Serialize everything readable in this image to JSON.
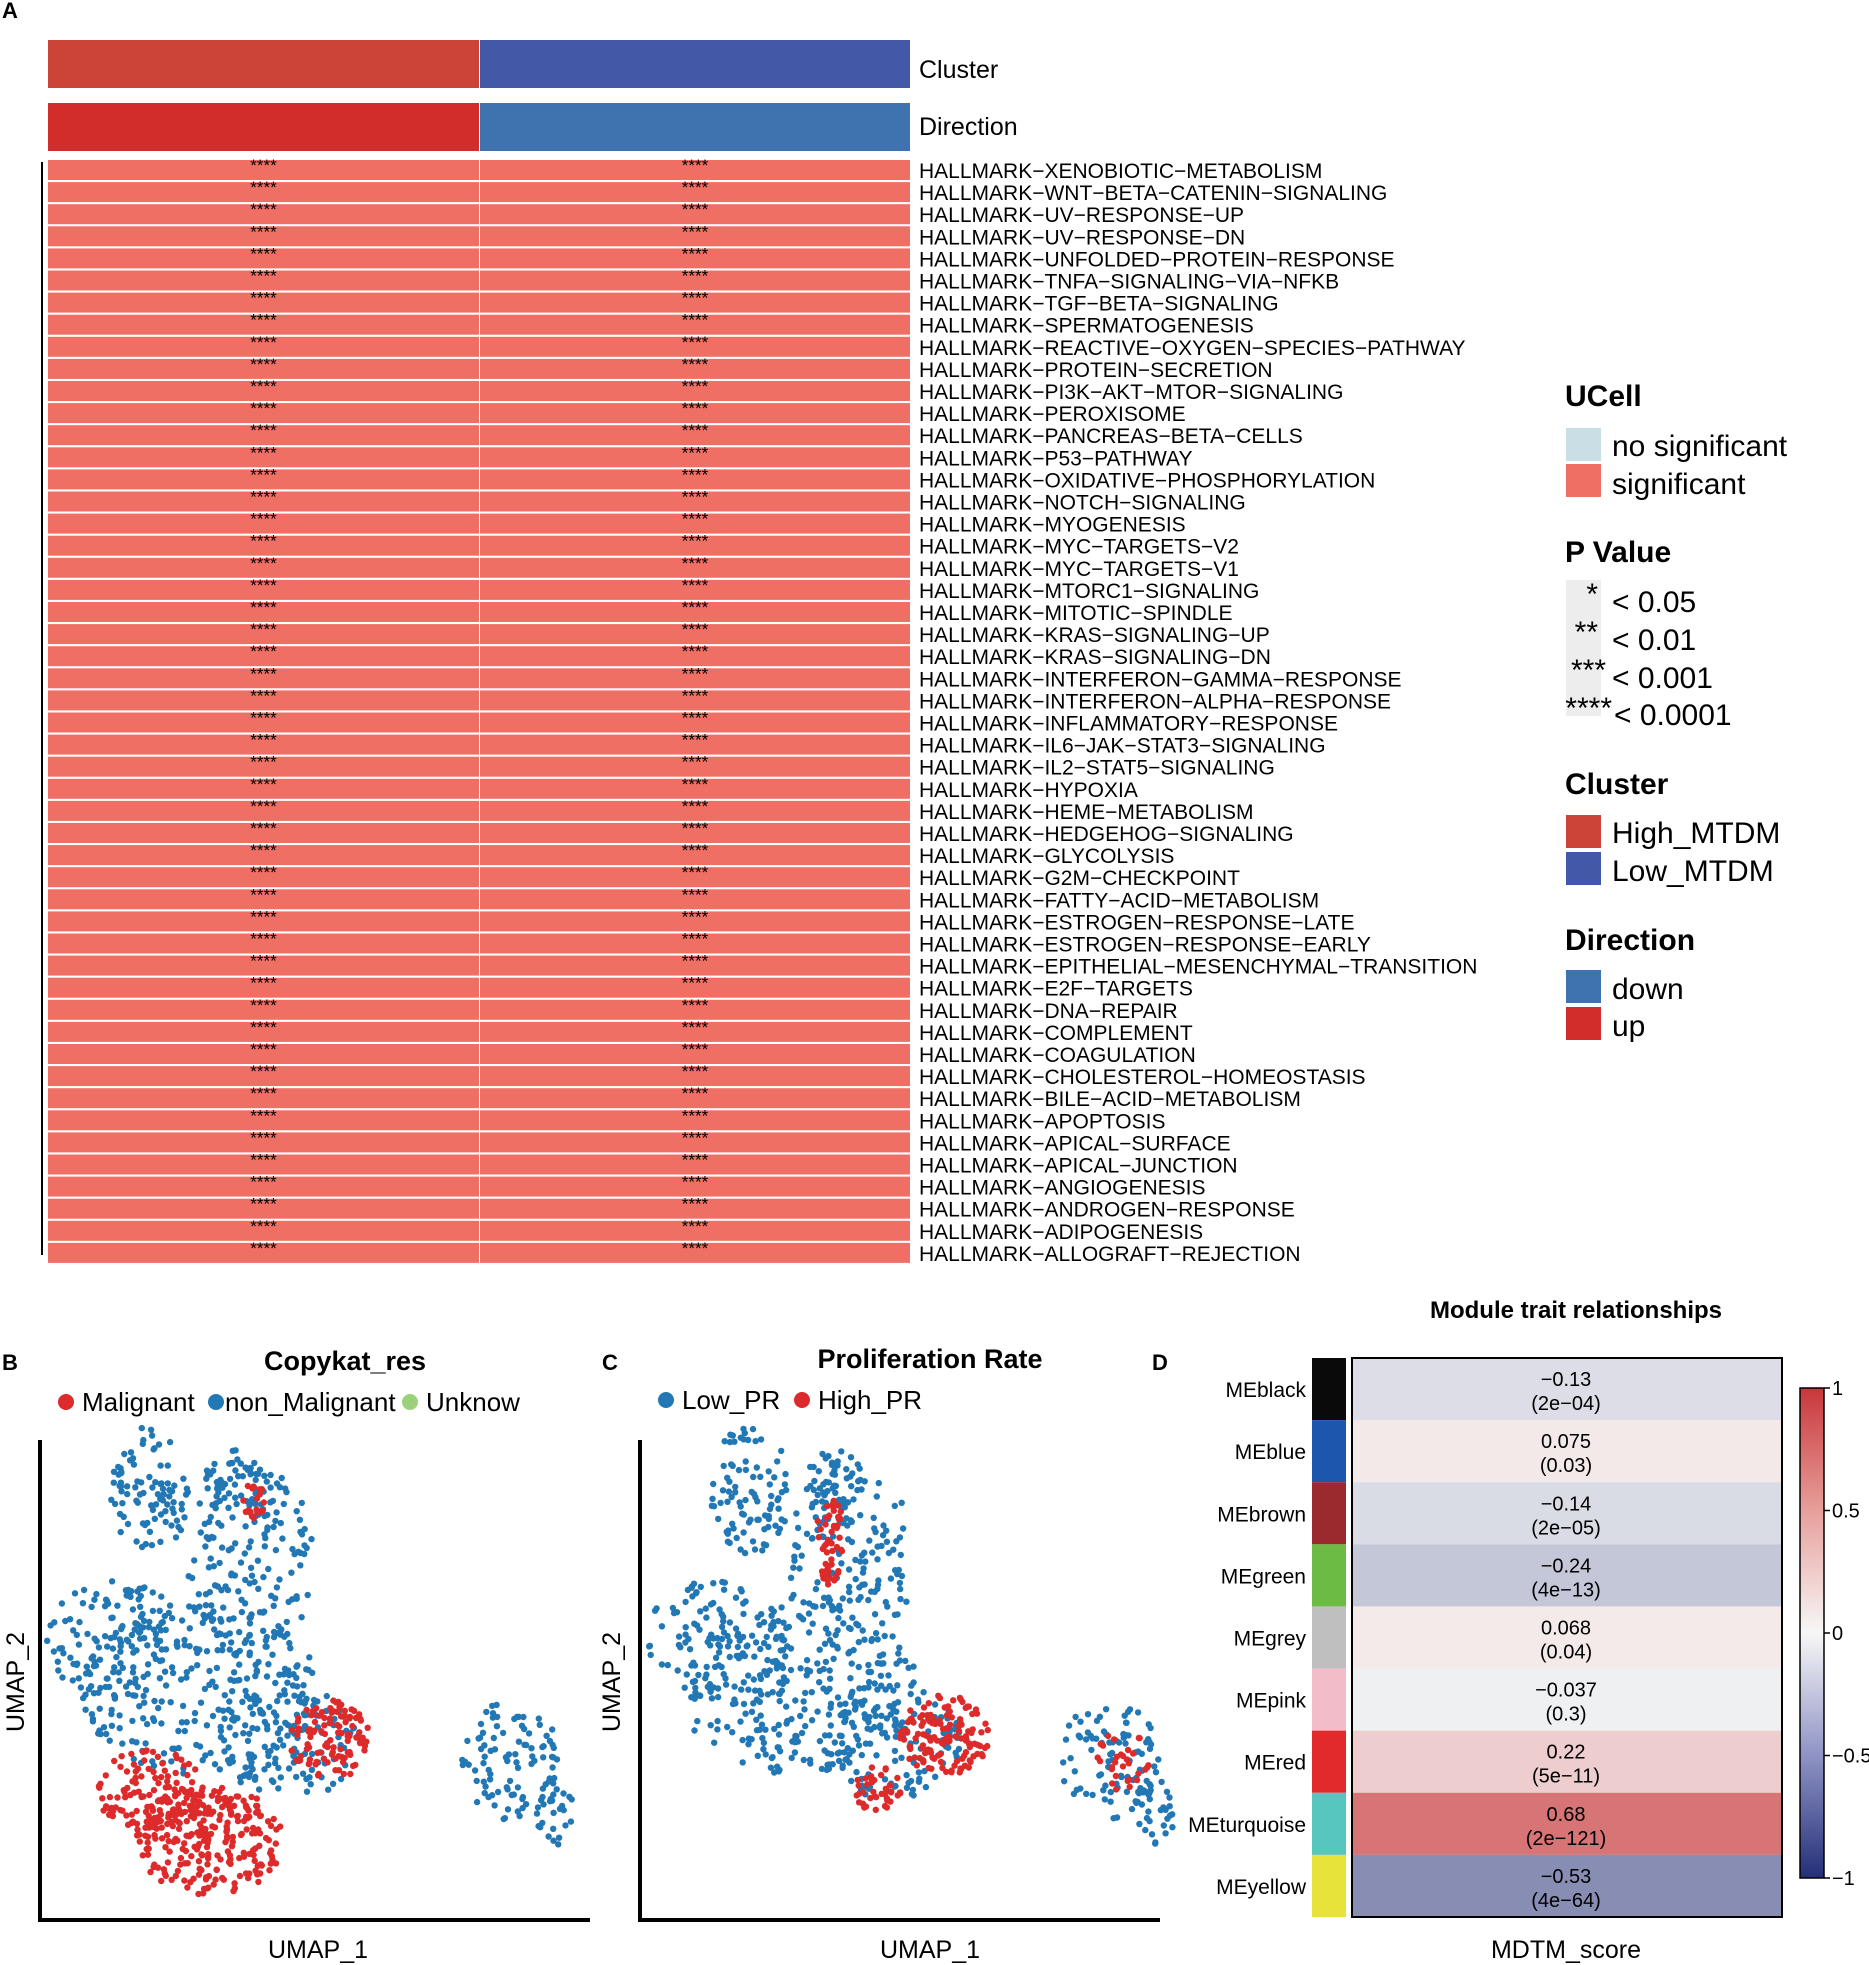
{
  "panel_labels": {
    "a": "A",
    "b": "B",
    "c": "C",
    "d": "D"
  },
  "heatmap": {
    "top_annotations": [
      "Cluster",
      "Direction"
    ],
    "cluster_colors": {
      "High_MTDM": "#cb4437",
      "Low_MTDM": "#4458a8"
    },
    "direction_colors": {
      "up": "#d22c2b",
      "down": "#3f73b0"
    },
    "significant_color": "#ef6f64",
    "no_significant_color": "#c9dee5",
    "pathways": [
      "HALLMARK−XENOBIOTIC−METABOLISM",
      "HALLMARK−WNT−BETA−CATENIN−SIGNALING",
      "HALLMARK−UV−RESPONSE−UP",
      "HALLMARK−UV−RESPONSE−DN",
      "HALLMARK−UNFOLDED−PROTEIN−RESPONSE",
      "HALLMARK−TNFA−SIGNALING−VIA−NFKB",
      "HALLMARK−TGF−BETA−SIGNALING",
      "HALLMARK−SPERMATOGENESIS",
      "HALLMARK−REACTIVE−OXYGEN−SPECIES−PATHWAY",
      "HALLMARK−PROTEIN−SECRETION",
      "HALLMARK−PI3K−AKT−MTOR−SIGNALING",
      "HALLMARK−PEROXISOME",
      "HALLMARK−PANCREAS−BETA−CELLS",
      "HALLMARK−P53−PATHWAY",
      "HALLMARK−OXIDATIVE−PHOSPHORYLATION",
      "HALLMARK−NOTCH−SIGNALING",
      "HALLMARK−MYOGENESIS",
      "HALLMARK−MYC−TARGETS−V2",
      "HALLMARK−MYC−TARGETS−V1",
      "HALLMARK−MTORC1−SIGNALING",
      "HALLMARK−MITOTIC−SPINDLE",
      "HALLMARK−KRAS−SIGNALING−UP",
      "HALLMARK−KRAS−SIGNALING−DN",
      "HALLMARK−INTERFERON−GAMMA−RESPONSE",
      "HALLMARK−INTERFERON−ALPHA−RESPONSE",
      "HALLMARK−INFLAMMATORY−RESPONSE",
      "HALLMARK−IL6−JAK−STAT3−SIGNALING",
      "HALLMARK−IL2−STAT5−SIGNALING",
      "HALLMARK−HYPOXIA",
      "HALLMARK−HEME−METABOLISM",
      "HALLMARK−HEDGEHOG−SIGNALING",
      "HALLMARK−GLYCOLYSIS",
      "HALLMARK−G2M−CHECKPOINT",
      "HALLMARK−FATTY−ACID−METABOLISM",
      "HALLMARK−ESTROGEN−RESPONSE−LATE",
      "HALLMARK−ESTROGEN−RESPONSE−EARLY",
      "HALLMARK−EPITHELIAL−MESENCHYMAL−TRANSITION",
      "HALLMARK−E2F−TARGETS",
      "HALLMARK−DNA−REPAIR",
      "HALLMARK−COMPLEMENT",
      "HALLMARK−COAGULATION",
      "HALLMARK−CHOLESTEROL−HOMEOSTASIS",
      "HALLMARK−BILE−ACID−METABOLISM",
      "HALLMARK−APOPTOSIS",
      "HALLMARK−APICAL−SURFACE",
      "HALLMARK−APICAL−JUNCTION",
      "HALLMARK−ANGIOGENESIS",
      "HALLMARK−ANDROGEN−RESPONSE",
      "HALLMARK−ADIPOGENESIS",
      "HALLMARK−ALLOGRAFT−REJECTION"
    ],
    "cell_marker": "****",
    "legend": {
      "ucell_title": "UCell",
      "ucell_items": [
        "no significant",
        "significant"
      ],
      "pvalue_title": "P Value",
      "pvalue_items": [
        {
          "stars": "*",
          "label": "< 0.05"
        },
        {
          "stars": "**",
          "label": "< 0.01"
        },
        {
          "stars": "***",
          "label": "< 0.001"
        },
        {
          "stars": "****",
          "label": "< 0.0001"
        }
      ],
      "cluster_title": "Cluster",
      "cluster_items": [
        "High_MTDM",
        "Low_MTDM"
      ],
      "direction_title": "Direction",
      "direction_items": [
        "down",
        "up"
      ]
    }
  },
  "umap_b": {
    "title": "Copykat_res",
    "legend": [
      "Malignant",
      "non_Malignant",
      "Unknow"
    ],
    "legend_colors": [
      "#dd2a2a",
      "#2277b5",
      "#9bd17b"
    ],
    "xlabel": "UMAP_1",
    "ylabel": "UMAP_2"
  },
  "umap_c": {
    "title": "Proliferation Rate",
    "legend": [
      "Low_PR",
      "High_PR"
    ],
    "legend_colors": [
      "#2277b5",
      "#dd2a2a"
    ],
    "xlabel": "UMAP_1",
    "ylabel": "UMAP_2"
  },
  "chart_data": [
    {
      "type": "heatmap",
      "title": "",
      "columns": [
        "High_MTDM",
        "Low_MTDM"
      ],
      "column_direction": [
        "up",
        "down"
      ],
      "rows": "heatmap.pathways",
      "cell_status": "significant",
      "cell_pvalue_marker": "****"
    },
    {
      "type": "heatmap",
      "title": "Module trait relationships",
      "xlabel": "MDTM_score",
      "columns": [
        "MDTM_score"
      ],
      "modules": [
        "MEblack",
        "MEblue",
        "MEbrown",
        "MEgreen",
        "MEgrey",
        "MEpink",
        "MEred",
        "MEturquoise",
        "MEyellow"
      ],
      "module_colors": [
        "#0a0a0a",
        "#1d56ad",
        "#9a2a2d",
        "#6cbb45",
        "#bfbfbf",
        "#f3bcc9",
        "#e22a2d",
        "#56c6be",
        "#e8e33a"
      ],
      "values": [
        -0.13,
        0.075,
        -0.14,
        -0.24,
        0.068,
        -0.037,
        0.22,
        0.68,
        -0.53
      ],
      "value_labels": [
        "−0.13",
        "0.075",
        "−0.14",
        "−0.24",
        "0.068",
        "−0.037",
        "0.22",
        "0.68",
        "−0.53"
      ],
      "pvalues": [
        "(2e−04)",
        "(0.03)",
        "(2e−05)",
        "(4e−13)",
        "(0.04)",
        "(0.3)",
        "(5e−11)",
        "(2e−121)",
        "(4e−64)"
      ],
      "colorbar_range": [
        -1,
        1
      ],
      "colorbar_ticks": [
        {
          "value": 1,
          "label": "1"
        },
        {
          "value": 0.5,
          "label": "0.5"
        },
        {
          "value": 0,
          "label": "0"
        },
        {
          "value": -0.5,
          "label": "−0.5"
        },
        {
          "value": -1,
          "label": "−1"
        }
      ]
    }
  ]
}
